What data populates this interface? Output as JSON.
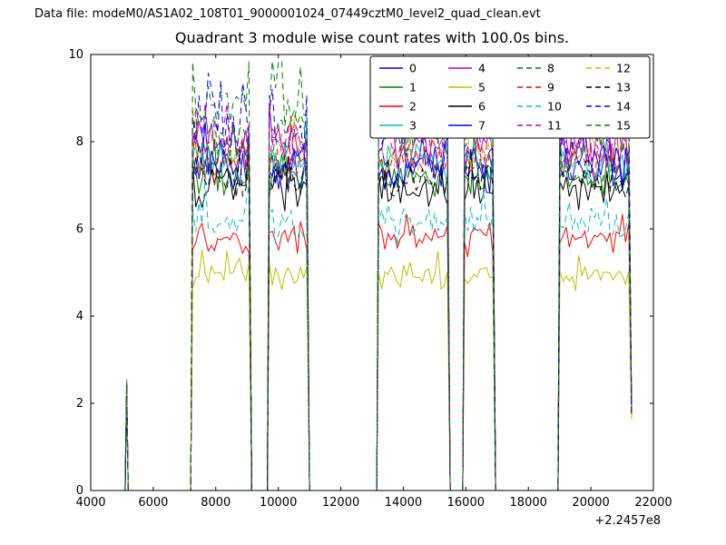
{
  "header": {
    "data_file_label": "Data file: modeM0/AS1A02_108T01_9000001024_07449cztM0_level2_quad_clean.evt"
  },
  "chart_data": {
    "type": "line",
    "title": "Quadrant 3 module wise count rates with 100.0s bins.",
    "xlabel": "",
    "ylabel": "",
    "x_offset_label": "+2.2457e8",
    "bin_seconds": 100.0,
    "xlim": [
      4000,
      22000
    ],
    "ylim": [
      0,
      10
    ],
    "xticks": [
      4000,
      6000,
      8000,
      10000,
      12000,
      14000,
      16000,
      18000,
      20000,
      22000
    ],
    "yticks": [
      0,
      2,
      4,
      6,
      8,
      10
    ],
    "grid": false,
    "legend": {
      "ncol": 4,
      "location": "upper right"
    },
    "segments": [
      {
        "type": "spike",
        "x0": 5100,
        "x1": 5200,
        "peak": 2.5
      },
      {
        "x0": 7200,
        "x1": 9150
      },
      {
        "x0": 9650,
        "x1": 11000
      },
      {
        "x0": 13150,
        "x1": 15500
      },
      {
        "x0": 15900,
        "x1": 16950
      },
      {
        "x0": 18950,
        "x1": 21300,
        "end_value": 1.9
      }
    ],
    "series": [
      {
        "name": "0",
        "color": "#0000ff",
        "style": "solid",
        "level": 7.35,
        "amp": 0.35
      },
      {
        "name": "1",
        "color": "#008000",
        "style": "solid",
        "level": 7.2,
        "amp": 0.35
      },
      {
        "name": "2",
        "color": "#ff0000",
        "style": "solid",
        "level": 5.75,
        "amp": 0.3
      },
      {
        "name": "3",
        "color": "#00bfbf",
        "style": "solid",
        "level": 7.5,
        "amp": 0.35
      },
      {
        "name": "4",
        "color": "#bf00bf",
        "style": "solid",
        "level": 7.85,
        "amp": 0.4
      },
      {
        "name": "5",
        "color": "#bfbf00",
        "style": "solid",
        "level": 4.95,
        "amp": 0.25
      },
      {
        "name": "6",
        "color": "#000000",
        "style": "solid",
        "level": 6.95,
        "amp": 0.35
      },
      {
        "name": "7",
        "color": "#0000ff",
        "style": "solid",
        "level": 7.45,
        "amp": 0.35
      },
      {
        "name": "8",
        "color": "#008000",
        "style": "dashed",
        "level": 8.8,
        "amp": 0.5
      },
      {
        "name": "9",
        "color": "#ff0000",
        "style": "dashed",
        "level": 7.6,
        "amp": 0.4
      },
      {
        "name": "10",
        "color": "#00bfbf",
        "style": "dashed",
        "level": 6.15,
        "amp": 0.35
      },
      {
        "name": "11",
        "color": "#bf00bf",
        "style": "dashed",
        "level": 8.0,
        "amp": 0.45
      },
      {
        "name": "12",
        "color": "#bfbf00",
        "style": "dashed",
        "level": 7.7,
        "amp": 0.4
      },
      {
        "name": "13",
        "color": "#000000",
        "style": "dashed",
        "level": 7.15,
        "amp": 0.35
      },
      {
        "name": "14",
        "color": "#0000ff",
        "style": "dashed",
        "level": 8.5,
        "amp": 0.55
      },
      {
        "name": "15",
        "color": "#008000",
        "style": "dashed",
        "level": 8.25,
        "amp": 0.45
      }
    ]
  }
}
